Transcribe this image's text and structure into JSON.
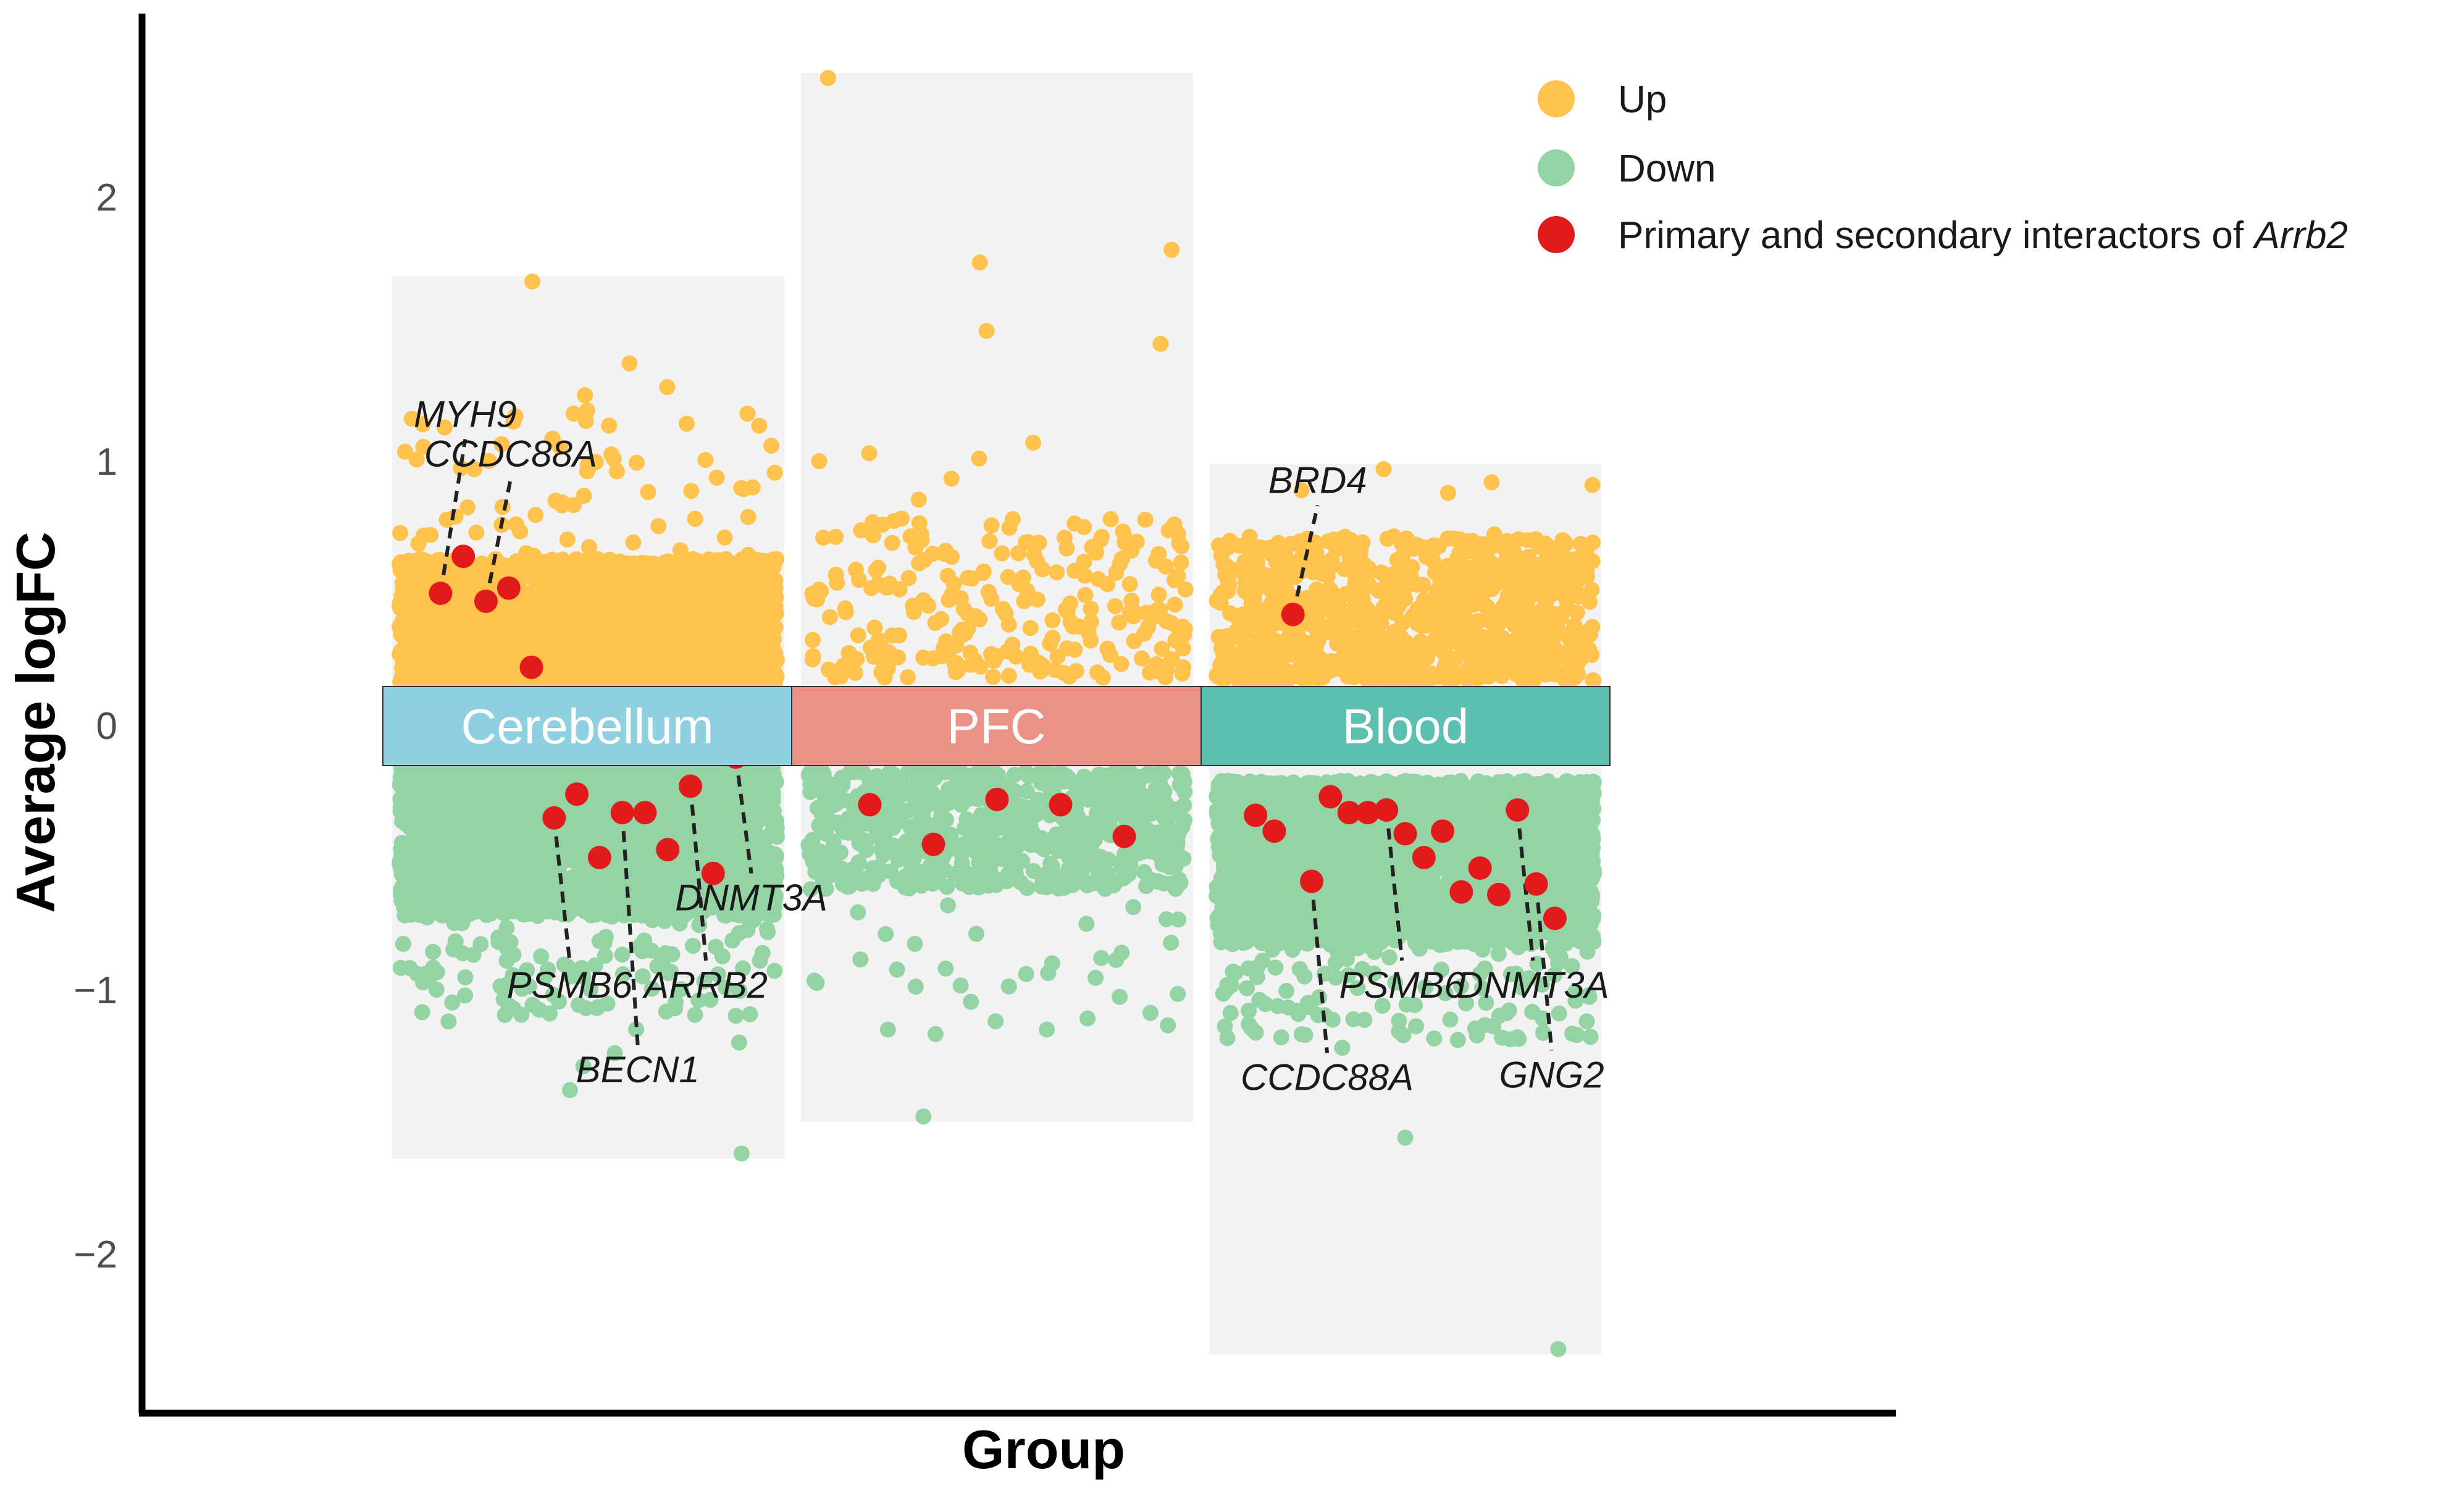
{
  "chart_data": {
    "type": "scatter",
    "title": "",
    "xlabel": "Group",
    "ylabel": "Average logFC",
    "ylim": [
      -2.5,
      2.7
    ],
    "yticks": [
      2,
      1,
      0,
      -1,
      -2
    ],
    "ytick_labels": [
      "2",
      "1",
      "0",
      "−1",
      "−2"
    ],
    "colors": {
      "up": "#FFC34D",
      "down": "#94D4A4",
      "interactor": "#E31A1C",
      "panel": "#F2F2F2",
      "cerebellum": "#8ECFE0",
      "pfc": "#EA9285",
      "blood": "#5DBFB0",
      "axis": "#000000"
    },
    "legend": {
      "position": "top-right",
      "entries": [
        {
          "key": "up",
          "label": "Up"
        },
        {
          "key": "down",
          "label": "Down"
        },
        {
          "key": "interactor",
          "label": "Primary and secondary interactors of ",
          "italic": "Arrb2"
        }
      ]
    },
    "groups": [
      {
        "name": "Cerebellum",
        "up_range": [
          0.08,
          1.68
        ],
        "down_range": [
          -1.62,
          -0.1
        ],
        "up_count": 3200,
        "down_count": 3000,
        "up_outliers": [
          1.68,
          1.37,
          1.25,
          1.28,
          1.18,
          1.17,
          1.15,
          1.14,
          1.18
        ],
        "down_outliers": [
          -1.62,
          -1.38,
          -1.29,
          -1.24,
          -1.2,
          -1.15,
          -1.12
        ],
        "interactors": [
          {
            "gene": "MYH9",
            "y": 0.5,
            "label_y": 1.13
          },
          {
            "gene": "",
            "y": 0.64
          },
          {
            "gene": "CCDC88A",
            "y": 0.47,
            "label_y": 0.98
          },
          {
            "gene": "",
            "y": 0.52
          },
          {
            "gene": "",
            "y": 0.22
          },
          {
            "gene": "PSMB6",
            "y": -0.35,
            "label_y": -1.03
          },
          {
            "gene": "",
            "y": -0.26
          },
          {
            "gene": "",
            "y": -0.5
          },
          {
            "gene": "BECN1",
            "y": -0.33,
            "label_y": -1.35
          },
          {
            "gene": "",
            "y": -0.33
          },
          {
            "gene": "",
            "y": -0.47
          },
          {
            "gene": "ARRB2",
            "y": -0.23,
            "label_y": -1.03
          },
          {
            "gene": "",
            "y": -0.56
          },
          {
            "gene": "DNMT3A",
            "y": -0.12,
            "label_y": -0.7
          }
        ]
      },
      {
        "name": "PFC",
        "up_range": [
          0.18,
          2.45
        ],
        "down_range": [
          -1.48,
          -0.17
        ],
        "up_count": 260,
        "down_count": 700,
        "up_outliers": [
          2.45,
          1.8,
          1.07,
          1.03,
          1.01
        ],
        "down_outliers": [
          -1.48,
          -0.92,
          -0.9,
          -0.88,
          -0.86
        ],
        "interactors": [
          {
            "gene": "",
            "y": -0.3
          },
          {
            "gene": "",
            "y": -0.45
          },
          {
            "gene": "",
            "y": -0.28
          },
          {
            "gene": "",
            "y": -0.3
          },
          {
            "gene": "",
            "y": -0.42
          }
        ]
      },
      {
        "name": "Blood",
        "up_range": [
          0.17,
          0.97
        ],
        "down_range": [
          -2.36,
          -0.21
        ],
        "up_count": 900,
        "down_count": 2600,
        "up_outliers": [
          0.97,
          0.92,
          0.91,
          0.89,
          0.88
        ],
        "down_outliers": [
          -2.36,
          -1.56,
          -1.22,
          -1.12,
          -1.09
        ],
        "interactors": [
          {
            "gene": "",
            "y": -0.34
          },
          {
            "gene": "",
            "y": -0.4
          },
          {
            "gene": "BRD4",
            "y": 0.42,
            "label_y": 0.88
          },
          {
            "gene": "CCDC88A",
            "y": -0.59,
            "label_y": -1.38
          },
          {
            "gene": "",
            "y": -0.27
          },
          {
            "gene": "",
            "y": -0.33
          },
          {
            "gene": "",
            "y": -0.33
          },
          {
            "gene": "PSMB6",
            "y": -0.32,
            "label_y": -1.03
          },
          {
            "gene": "",
            "y": -0.41
          },
          {
            "gene": "",
            "y": -0.5
          },
          {
            "gene": "",
            "y": -0.4
          },
          {
            "gene": "",
            "y": -0.63
          },
          {
            "gene": "",
            "y": -0.54
          },
          {
            "gene": "",
            "y": -0.64
          },
          {
            "gene": "DNMT3A",
            "y": -0.32,
            "label_y": -1.03
          },
          {
            "gene": "GNG2",
            "y": -0.6,
            "label_y": -1.37
          },
          {
            "gene": "",
            "y": -0.73
          }
        ]
      }
    ]
  }
}
